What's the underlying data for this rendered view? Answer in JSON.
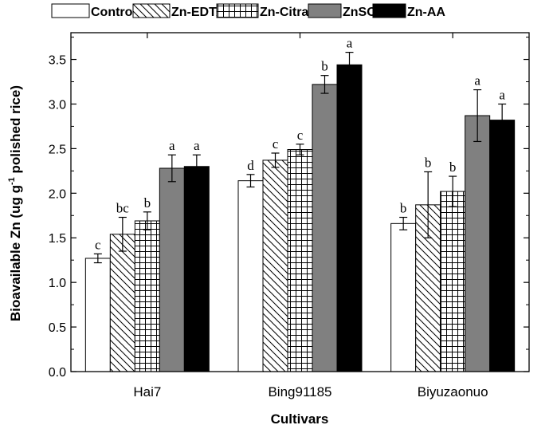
{
  "chart_data": {
    "type": "bar",
    "title": "",
    "xlabel": "Cultivars",
    "ylabel": {
      "main": "Bioavailable Zn (ug g",
      "sup": "-1",
      "rest": " polished rice)"
    },
    "categories": [
      "Hai7",
      "Bing91185",
      "Biyuzaonuo"
    ],
    "ylim": [
      0,
      3.8
    ],
    "yticks": [
      "0.0",
      "0.5",
      "1.0",
      "1.5",
      "2.0",
      "2.5",
      "3.0",
      "3.5"
    ],
    "grid": false,
    "legend_position": "top",
    "series": [
      {
        "name": "Control",
        "pattern": "white",
        "values": [
          1.27,
          2.14,
          1.66
        ],
        "errors": [
          0.05,
          0.07,
          0.07
        ],
        "letters": [
          "c",
          "d",
          "b"
        ]
      },
      {
        "name": "Zn-EDTA",
        "pattern": "diagonal",
        "values": [
          1.54,
          2.37,
          1.87
        ],
        "errors": [
          0.19,
          0.08,
          0.37
        ],
        "letters": [
          "bc",
          "c",
          "b"
        ]
      },
      {
        "name": "Zn-Citrate",
        "pattern": "grid",
        "values": [
          1.69,
          2.49,
          2.02
        ],
        "errors": [
          0.1,
          0.06,
          0.17
        ],
        "letters": [
          "b",
          "c",
          "b"
        ]
      },
      {
        "name": "ZnSO4",
        "pattern": "gray",
        "values": [
          2.28,
          3.22,
          2.87
        ],
        "errors": [
          0.15,
          0.1,
          0.29
        ],
        "letters": [
          "a",
          "b",
          "a"
        ]
      },
      {
        "name": "Zn-AA",
        "pattern": "black",
        "values": [
          2.3,
          3.44,
          2.82
        ],
        "errors": [
          0.13,
          0.14,
          0.18
        ],
        "letters": [
          "a",
          "a",
          "a"
        ]
      }
    ]
  }
}
